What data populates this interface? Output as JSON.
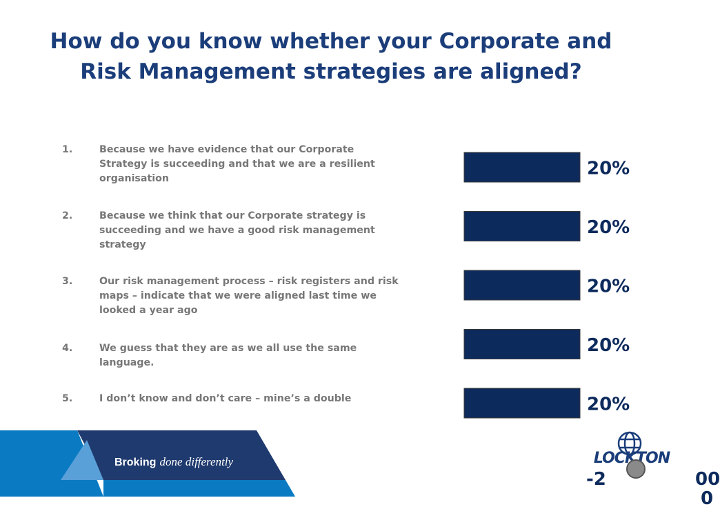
{
  "title": "How do you know whether your Corporate and Risk Management strategies are aligned?",
  "options": [
    {
      "num": "1.",
      "text": "Because we have evidence that our Corporate Strategy is succeeding and that we are a resilient organisation"
    },
    {
      "num": "2.",
      "text": "Because we think that our Corporate strategy is succeeding and we have a good risk management strategy"
    },
    {
      "num": "3.",
      "text": "Our risk management process – risk registers and risk maps – indicate that we were aligned last time we looked a year ago"
    },
    {
      "num": "4.",
      "text": "We guess that they are as we all use the same language."
    },
    {
      "num": "5.",
      "text": "I don’t know and don’t care – mine’s a double"
    }
  ],
  "chart_data": {
    "type": "bar",
    "orientation": "horizontal",
    "categories": [
      "1",
      "2",
      "3",
      "4",
      "5"
    ],
    "values": [
      20,
      20,
      20,
      20,
      20
    ],
    "data_labels": [
      "20%",
      "20%",
      "20%",
      "20%",
      "20%"
    ],
    "bar_color": "#0d2a5c",
    "grid": false,
    "title": "",
    "xlabel": "",
    "ylabel": ""
  },
  "footer": {
    "tagline_strong": "Broking",
    "tagline_italic": "done differently",
    "logo_text": "LOCKTON",
    "page_left": "-2",
    "page_right": "00",
    "page_right_cut": "0"
  },
  "colors": {
    "title": "#1b3d7a",
    "option_text": "#777777",
    "bar": "#0d2a5c",
    "band_blue": "#0a7ac2",
    "band_navy": "#1f3a6e"
  }
}
